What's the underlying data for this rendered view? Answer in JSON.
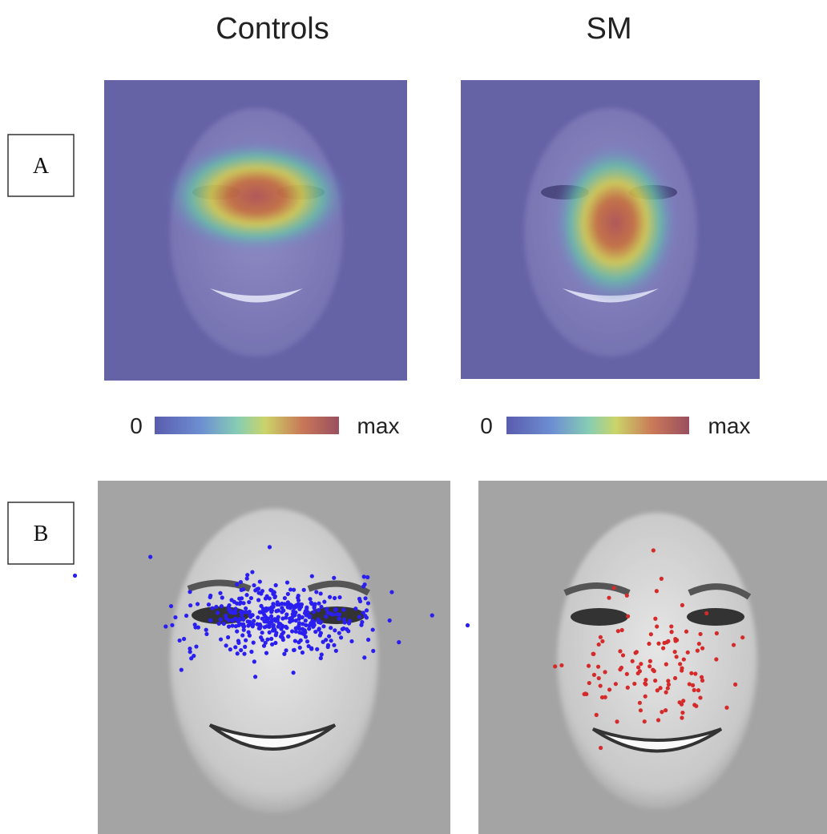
{
  "columns": [
    {
      "title": "Controls"
    },
    {
      "title": "SM"
    }
  ],
  "panels": [
    {
      "label": "A"
    },
    {
      "label": "B"
    }
  ],
  "colorbars": [
    {
      "min_label": "0",
      "max_label": "max"
    },
    {
      "min_label": "0",
      "max_label": "max"
    }
  ]
}
